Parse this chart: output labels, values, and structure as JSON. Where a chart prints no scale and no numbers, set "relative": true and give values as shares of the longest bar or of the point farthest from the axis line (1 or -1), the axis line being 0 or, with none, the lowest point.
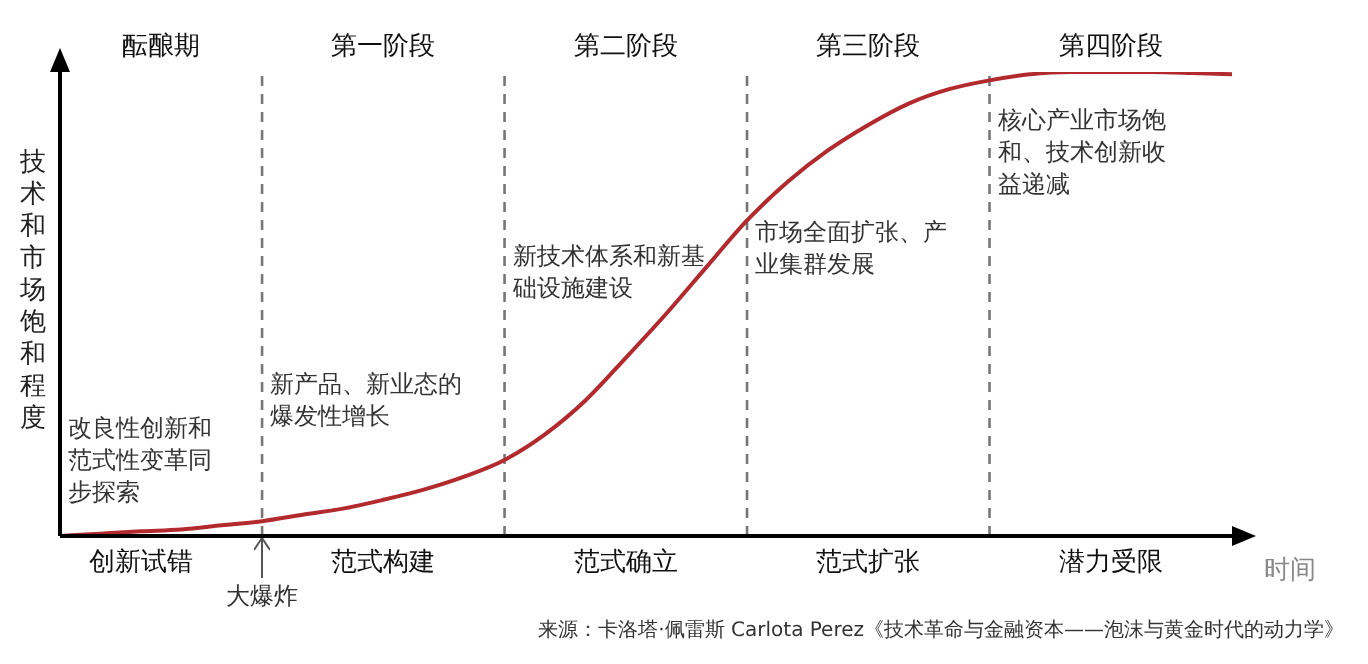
{
  "chart_data": {
    "type": "line",
    "relative": true,
    "grid": "x",
    "xlabel": "时间",
    "ylabel": "技术和市场饱和程度",
    "categories": [
      null,
      null,
      "创新试错",
      null,
      null,
      null,
      null,
      null,
      "范式构建",
      null,
      null,
      null,
      null,
      null,
      "范式确立",
      null,
      null,
      null,
      null,
      null,
      "范式扩张",
      null,
      null,
      null,
      null,
      null,
      "潜力受限",
      null,
      null,
      null
    ],
    "series": [
      {
        "color": "#b22a2e",
        "values": [
          0,
          0.005,
          0.01,
          0.014,
          0.023,
          0.032,
          0.046,
          0.059,
          0.078,
          0.1,
          0.128,
          0.164,
          0.219,
          0.292,
          0.384,
          0.479,
          0.58,
          0.68,
          0.763,
          0.831,
          0.886,
          0.932,
          0.963,
          0.982,
          0.995,
          1,
          1,
          1,
          0.998,
          0.995
        ]
      }
    ],
    "annotations": [
      "酝酿期",
      "第一阶段",
      "第二阶段",
      "第三阶段",
      "第四阶段",
      "改良性创新和范式性变革同步探索",
      "新产品、新业态的爆发性增长",
      "新技术体系和新基础设施建设",
      "市场全面扩张、产业集群发展",
      "核心产业市场饱和、技术创新收益递减",
      "大爆炸",
      "来源：卡洛塔·佩雷斯 Carlota Perez《技术革命与金融资本——泡沫与黄金时代的动力学》"
    ]
  }
}
